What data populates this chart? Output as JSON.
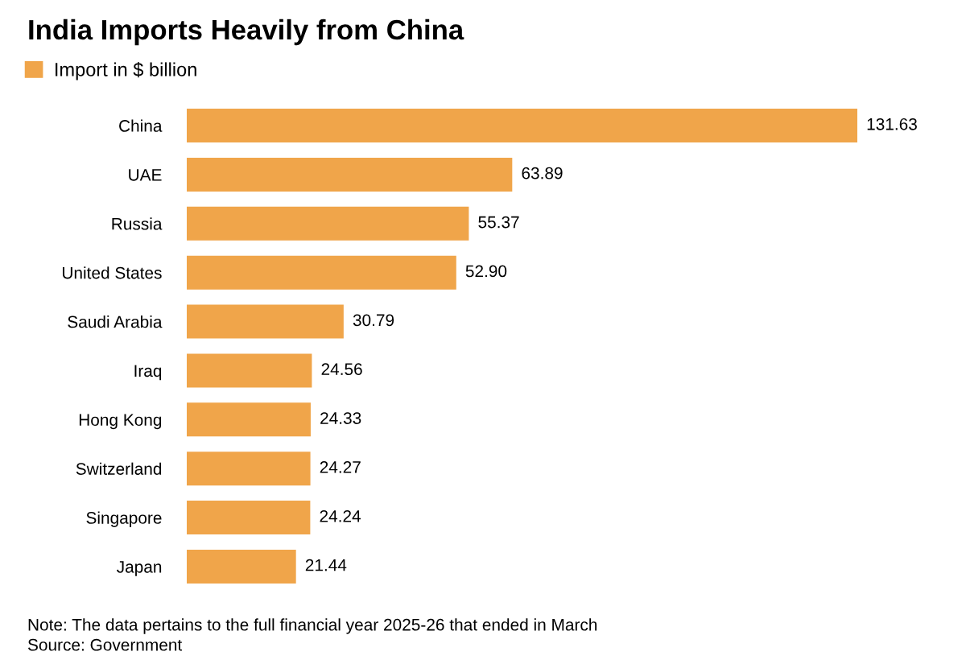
{
  "chart_data": {
    "type": "bar",
    "orientation": "horizontal",
    "title": "India Imports Heavily from China",
    "categories": [
      "China",
      "UAE",
      "Russia",
      "United States",
      "Saudi Arabia",
      "Iraq",
      "Hong Kong",
      "Switzerland",
      "Singapore",
      "Japan"
    ],
    "series": [
      {
        "name": "Import in $ billion",
        "color": "#f0a54a",
        "values": [
          131.63,
          63.89,
          55.37,
          52.9,
          30.79,
          24.56,
          24.33,
          24.27,
          24.24,
          21.44
        ],
        "value_labels": [
          "131.63",
          "63.89",
          "55.37",
          "52.90",
          "30.79",
          "24.56",
          "24.33",
          "24.27",
          "24.24",
          "21.44"
        ]
      }
    ],
    "legend": "top left",
    "grid": false,
    "tick_labels": "y",
    "annotations": [
      "Note: The data pertains to the full financial year 2025-26 that ended in March",
      "Source: Government"
    ]
  }
}
